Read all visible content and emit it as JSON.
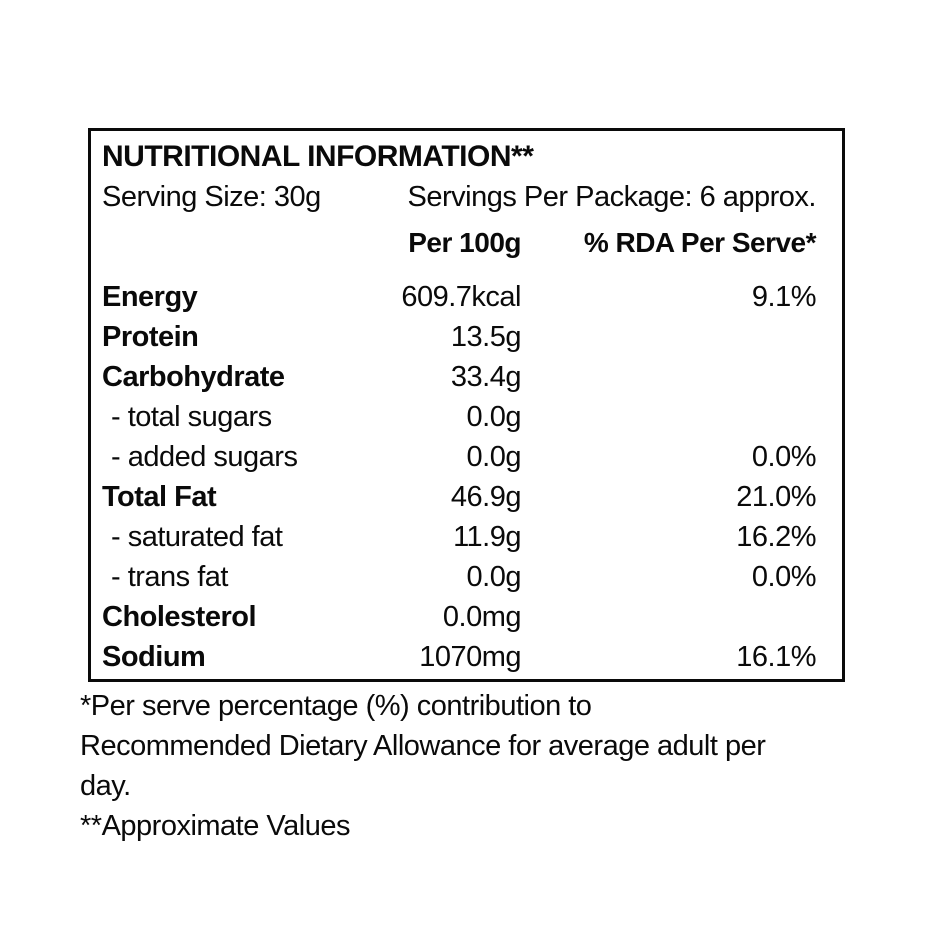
{
  "label": {
    "title": "NUTRITIONAL INFORMATION**",
    "serving_size": "Serving Size: 30g",
    "servings_per_package": "Servings Per Package: 6 approx.",
    "columns": {
      "per_100g": "Per 100g",
      "rda_per_serve": "% RDA Per Serve*"
    },
    "rows": [
      {
        "name": "Energy",
        "bold": true,
        "value": "609.7kcal",
        "rda": "9.1%"
      },
      {
        "name": "Protein",
        "bold": true,
        "value": "13.5g",
        "rda": ""
      },
      {
        "name": "Carbohydrate",
        "bold": true,
        "value": "33.4g",
        "rda": ""
      },
      {
        "name": "- total sugars",
        "bold": false,
        "value": "0.0g",
        "rda": ""
      },
      {
        "name": "- added sugars",
        "bold": false,
        "value": "0.0g",
        "rda": "0.0%"
      },
      {
        "name": "Total Fat",
        "bold": true,
        "value": "46.9g",
        "rda": "21.0%"
      },
      {
        "name": "- saturated fat",
        "bold": false,
        "value": "11.9g",
        "rda": "16.2%"
      },
      {
        "name": "- trans fat",
        "bold": false,
        "value": "0.0g",
        "rda": "0.0%"
      },
      {
        "name": "Cholesterol",
        "bold": true,
        "value": "0.0mg",
        "rda": ""
      },
      {
        "name": "Sodium",
        "bold": true,
        "value": "1070mg",
        "rda": "16.1%"
      }
    ],
    "footnotes": [
      "*Per serve percentage (%) contribution to Recommended Dietary Allowance for average adult per day.",
      "**Approximate Values"
    ],
    "colors": {
      "text": "#0a0a0a",
      "background": "#ffffff",
      "border": "#0a0a0a"
    }
  }
}
